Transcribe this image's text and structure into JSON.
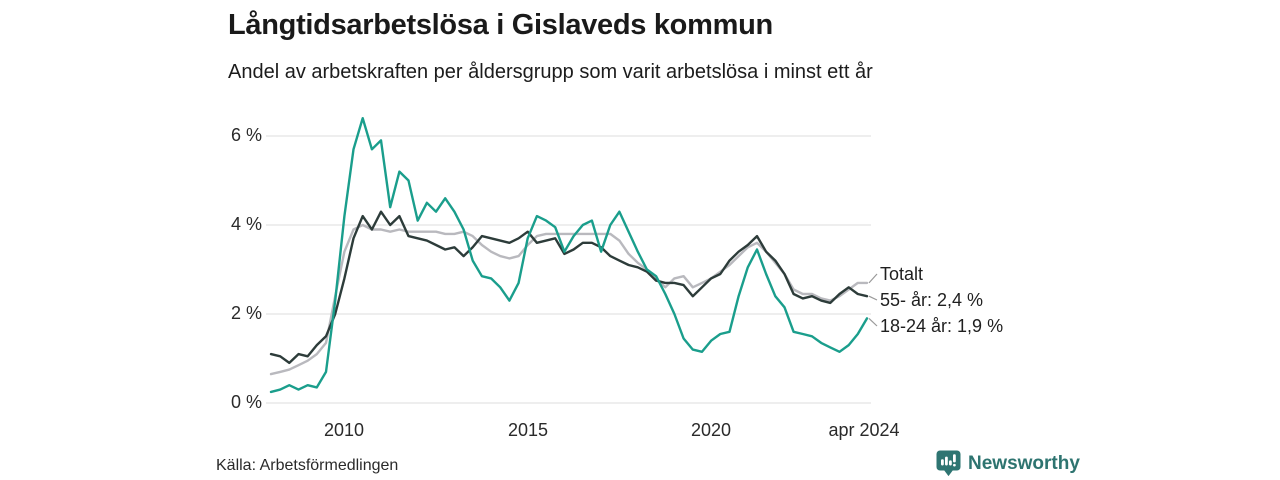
{
  "header": {
    "title": "Långtidsarbetslösa i Gislaveds kommun",
    "subtitle": "Andel av arbetskraften per åldersgrupp som varit arbetslösa i minst ett år"
  },
  "chart_data": {
    "type": "line",
    "title": "Långtidsarbetslösa i Gislaveds kommun",
    "subtitle": "Andel av arbetskraften per åldersgrupp som varit arbetslösa i minst ett år",
    "unit": "%",
    "grid": "horizontal",
    "legend_position": "end-of-line",
    "xlim": [
      2008.0,
      2024.25
    ],
    "ylim": [
      0,
      6.8
    ],
    "x_tick_values": [
      2010,
      2015,
      2020,
      2024.25
    ],
    "x_tick_labels": [
      "2010",
      "2015",
      "2020",
      "apr 2024"
    ],
    "y_tick_values": [
      0,
      2,
      4,
      6
    ],
    "y_tick_labels": [
      "0 %",
      "2 %",
      "4 %",
      "6 %"
    ],
    "end_labels": [
      "Totalt",
      "55- år: 2,4 %",
      "18-24 år: 1,9 %"
    ],
    "x": [
      2008.0,
      2008.25,
      2008.5,
      2008.75,
      2009.0,
      2009.25,
      2009.5,
      2009.75,
      2010.0,
      2010.25,
      2010.5,
      2010.75,
      2011.0,
      2011.25,
      2011.5,
      2011.75,
      2012.0,
      2012.25,
      2012.5,
      2012.75,
      2013.0,
      2013.25,
      2013.5,
      2013.75,
      2014.0,
      2014.25,
      2014.5,
      2014.75,
      2015.0,
      2015.25,
      2015.5,
      2015.75,
      2016.0,
      2016.25,
      2016.5,
      2016.75,
      2017.0,
      2017.25,
      2017.5,
      2017.75,
      2018.0,
      2018.25,
      2018.5,
      2018.75,
      2019.0,
      2019.25,
      2019.5,
      2019.75,
      2020.0,
      2020.25,
      2020.5,
      2020.75,
      2021.0,
      2021.25,
      2021.5,
      2021.75,
      2022.0,
      2022.25,
      2022.5,
      2022.75,
      2023.0,
      2023.25,
      2023.5,
      2023.75,
      2024.0,
      2024.25
    ],
    "series": [
      {
        "name": "Totalt",
        "color": "#b9b9be",
        "final_value": 2.7,
        "values": [
          0.65,
          0.7,
          0.75,
          0.85,
          0.95,
          1.1,
          1.35,
          2.4,
          3.4,
          3.9,
          4.0,
          3.9,
          3.9,
          3.85,
          3.9,
          3.85,
          3.85,
          3.85,
          3.85,
          3.8,
          3.8,
          3.85,
          3.75,
          3.55,
          3.4,
          3.3,
          3.25,
          3.3,
          3.55,
          3.75,
          3.8,
          3.8,
          3.8,
          3.8,
          3.8,
          3.8,
          3.8,
          3.8,
          3.65,
          3.35,
          3.15,
          3.0,
          2.8,
          2.6,
          2.8,
          2.85,
          2.6,
          2.7,
          2.8,
          2.95,
          3.1,
          3.3,
          3.5,
          3.6,
          3.4,
          3.15,
          2.9,
          2.55,
          2.45,
          2.45,
          2.35,
          2.3,
          2.4,
          2.55,
          2.7,
          2.7
        ]
      },
      {
        "name": "55- år",
        "color": "#2d3c3a",
        "final_value": 2.4,
        "values": [
          1.1,
          1.05,
          0.9,
          1.1,
          1.05,
          1.3,
          1.5,
          2.0,
          2.8,
          3.7,
          4.2,
          3.9,
          4.3,
          4.0,
          4.2,
          3.75,
          3.7,
          3.65,
          3.55,
          3.45,
          3.5,
          3.3,
          3.5,
          3.75,
          3.7,
          3.65,
          3.6,
          3.7,
          3.85,
          3.6,
          3.65,
          3.7,
          3.35,
          3.45,
          3.6,
          3.6,
          3.5,
          3.3,
          3.2,
          3.1,
          3.05,
          2.95,
          2.75,
          2.7,
          2.7,
          2.65,
          2.4,
          2.6,
          2.8,
          2.9,
          3.2,
          3.4,
          3.55,
          3.75,
          3.4,
          3.2,
          2.9,
          2.45,
          2.35,
          2.4,
          2.3,
          2.25,
          2.45,
          2.6,
          2.45,
          2.4
        ]
      },
      {
        "name": "18-24 år",
        "color": "#1a9e8c",
        "final_value": 1.9,
        "values": [
          0.25,
          0.3,
          0.4,
          0.3,
          0.4,
          0.35,
          0.7,
          2.3,
          4.2,
          5.7,
          6.4,
          5.7,
          5.9,
          4.4,
          5.2,
          5.0,
          4.1,
          4.5,
          4.3,
          4.6,
          4.3,
          3.9,
          3.2,
          2.85,
          2.8,
          2.6,
          2.3,
          2.7,
          3.7,
          4.2,
          4.1,
          3.95,
          3.4,
          3.75,
          4.0,
          4.1,
          3.4,
          4.0,
          4.3,
          3.85,
          3.4,
          3.0,
          2.85,
          2.45,
          2.0,
          1.45,
          1.2,
          1.15,
          1.4,
          1.55,
          1.6,
          2.4,
          3.05,
          3.45,
          2.9,
          2.4,
          2.15,
          1.6,
          1.55,
          1.5,
          1.35,
          1.25,
          1.15,
          1.3,
          1.55,
          1.9
        ]
      }
    ]
  },
  "source": {
    "label": "Källa: Arbetsförmedlingen"
  },
  "branding": {
    "name": "Newsworthy",
    "icon": "bar-chart-pin-icon",
    "color": "#2e7470"
  },
  "colors": {
    "background": "#ffffff",
    "gridline": "#dcdcdc",
    "connector": "#999999",
    "text": "#1a1a1a"
  }
}
